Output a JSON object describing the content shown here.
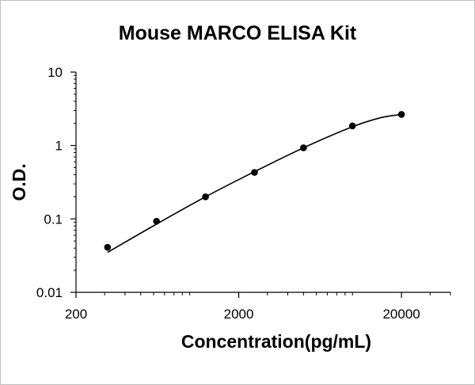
{
  "chart_data": {
    "type": "scatter",
    "title": "Mouse MARCO ELISA Kit",
    "xlabel": "Concentration(pg/mL)",
    "ylabel": "O.D.",
    "x_scale": "log",
    "y_scale": "log",
    "xlim": [
      200,
      40000
    ],
    "ylim": [
      0.01,
      10
    ],
    "x_ticks": [
      200,
      2000,
      20000
    ],
    "x_tick_labels": [
      "200",
      "2000",
      "20000"
    ],
    "y_ticks": [
      0.01,
      0.1,
      1,
      10
    ],
    "y_tick_labels": [
      "0.01",
      "0.1",
      "1",
      "10"
    ],
    "grid": false,
    "legend": "none",
    "series": [
      {
        "marker": "circle",
        "color": "#000000",
        "points": [
          {
            "x": 312.5,
            "y": 0.041
          },
          {
            "x": 625,
            "y": 0.093
          },
          {
            "x": 1250,
            "y": 0.2
          },
          {
            "x": 2500,
            "y": 0.43
          },
          {
            "x": 5000,
            "y": 0.93
          },
          {
            "x": 10000,
            "y": 1.85
          },
          {
            "x": 20000,
            "y": 2.65
          }
        ],
        "fit_curve": [
          {
            "x": 312.5,
            "y": 0.035
          },
          {
            "x": 625,
            "y": 0.085
          },
          {
            "x": 1250,
            "y": 0.2
          },
          {
            "x": 2500,
            "y": 0.44
          },
          {
            "x": 5000,
            "y": 0.93
          },
          {
            "x": 10000,
            "y": 1.8
          },
          {
            "x": 15000,
            "y": 2.4
          },
          {
            "x": 20000,
            "y": 2.65
          }
        ]
      }
    ]
  }
}
